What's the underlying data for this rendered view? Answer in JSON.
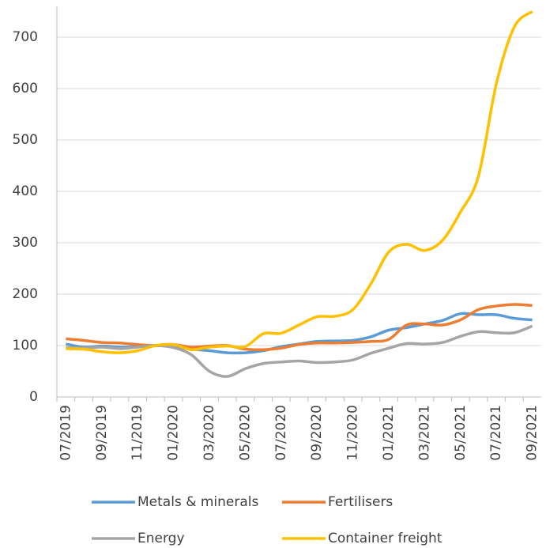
{
  "chart_data": {
    "type": "line",
    "categories": [
      "07/2019",
      null,
      "09/2019",
      null,
      "11/2019",
      null,
      "01/2020",
      null,
      "03/2020",
      null,
      "05/2020",
      null,
      "07/2020",
      null,
      "09/2020",
      null,
      "11/2020",
      null,
      "01/2021",
      null,
      "03/2021",
      null,
      "05/2021",
      null,
      "07/2021",
      null,
      "09/2021"
    ],
    "series": [
      {
        "name": "Metals & minerals",
        "color": "#5b9bd5",
        "values": [
          103,
          97,
          99,
          97,
          98,
          100,
          98,
          93,
          90,
          86,
          86,
          90,
          98,
          103,
          108,
          109,
          110,
          117,
          130,
          135,
          142,
          149,
          162,
          160,
          160,
          153,
          150
        ]
      },
      {
        "name": "Fertilisers",
        "color": "#ed7d31",
        "values": [
          113,
          110,
          106,
          105,
          102,
          100,
          102,
          97,
          99,
          100,
          93,
          92,
          95,
          102,
          105,
          105,
          106,
          108,
          112,
          140,
          142,
          140,
          150,
          170,
          177,
          180,
          178
        ]
      },
      {
        "name": "Energy",
        "color": "#a5a5a5",
        "values": [
          96,
          95,
          97,
          94,
          97,
          100,
          96,
          82,
          50,
          40,
          55,
          65,
          68,
          70,
          67,
          68,
          72,
          85,
          95,
          104,
          103,
          106,
          118,
          127,
          125,
          125,
          138
        ]
      },
      {
        "name": "Container freight",
        "color": "#ffc000",
        "values": [
          94,
          93,
          88,
          86,
          90,
          100,
          102,
          92,
          97,
          99,
          98,
          123,
          124,
          140,
          156,
          157,
          170,
          220,
          282,
          297,
          285,
          305,
          360,
          430,
          610,
          720,
          750
        ]
      }
    ],
    "ylim": [
      0,
      760
    ],
    "yticks": [
      0,
      100,
      200,
      300,
      400,
      500,
      600,
      700
    ],
    "grid": true
  }
}
